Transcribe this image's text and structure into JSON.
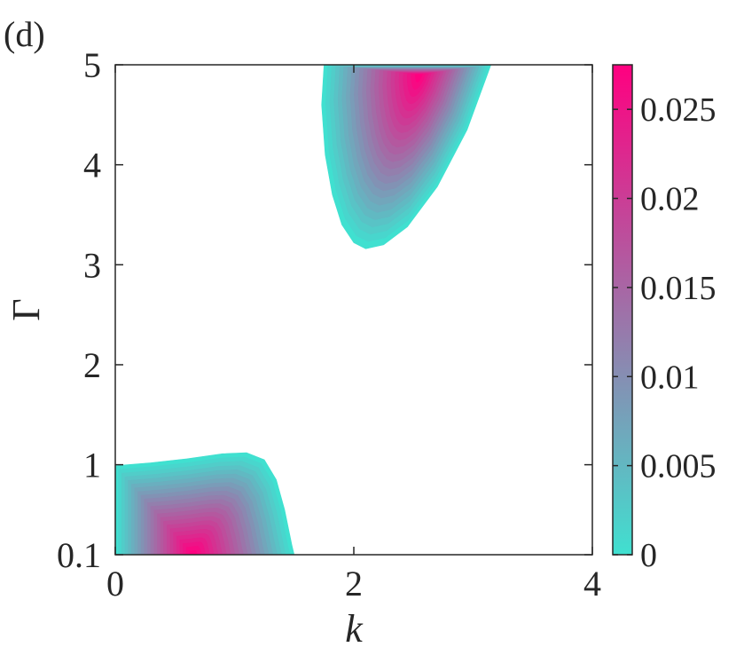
{
  "panel_label": "(d)",
  "chart_data": {
    "type": "heatmap",
    "title": "",
    "xlabel": "k",
    "ylabel": "Γ",
    "xlim": [
      0,
      4
    ],
    "ylim": [
      0.1,
      5
    ],
    "x_ticks": [
      0,
      2,
      4
    ],
    "x_tick_labels": [
      "0",
      "2",
      "4"
    ],
    "y_ticks": [
      0.1,
      1,
      2,
      3,
      4,
      5
    ],
    "y_tick_labels": [
      "0.1",
      "1",
      "2",
      "3",
      "4",
      "5"
    ],
    "colorbar": {
      "range": [
        0,
        0.0275
      ],
      "ticks": [
        0,
        0.005,
        0.01,
        0.015,
        0.02,
        0.025
      ],
      "tick_labels": [
        "0",
        "0.005",
        "0.01",
        "0.015",
        "0.02",
        "0.025"
      ],
      "colors": [
        "#40e0d0",
        "#ff0080"
      ]
    },
    "grid": false,
    "regions": [
      {
        "name": "lower-left",
        "boundary": [
          [
            0,
            0.1
          ],
          [
            0,
            0.99
          ],
          [
            0.3,
            1.02
          ],
          [
            0.6,
            1.06
          ],
          [
            0.9,
            1.11
          ],
          [
            1.1,
            1.12
          ],
          [
            1.25,
            1.05
          ],
          [
            1.35,
            0.85
          ],
          [
            1.42,
            0.55
          ],
          [
            1.48,
            0.2
          ],
          [
            1.5,
            0.1
          ]
        ],
        "peak": [
          0.65,
          0.1
        ],
        "peak_value": 0.0275
      },
      {
        "name": "upper",
        "boundary": [
          [
            1.75,
            5
          ],
          [
            1.73,
            4.6
          ],
          [
            1.76,
            4.1
          ],
          [
            1.82,
            3.7
          ],
          [
            1.9,
            3.4
          ],
          [
            2.0,
            3.22
          ],
          [
            2.1,
            3.16
          ],
          [
            2.25,
            3.2
          ],
          [
            2.45,
            3.38
          ],
          [
            2.7,
            3.78
          ],
          [
            2.95,
            4.35
          ],
          [
            3.15,
            5
          ]
        ],
        "peak": [
          2.55,
          4.9
        ],
        "peak_value": 0.0275
      }
    ]
  }
}
